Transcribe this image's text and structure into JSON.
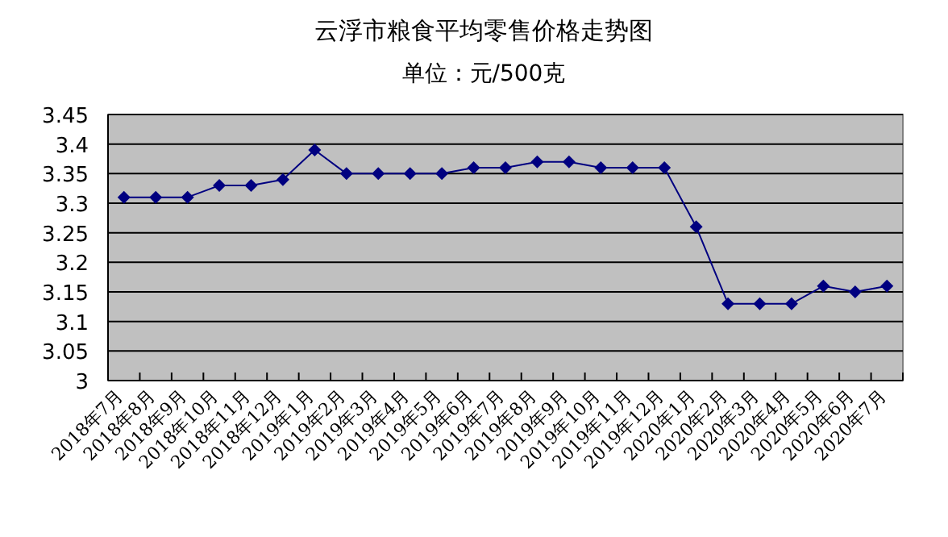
{
  "chart_data": {
    "type": "line",
    "title": "云浮市粮食平均零售价格走势图",
    "subtitle": "单位：元/500克",
    "categories": [
      "2018年7月",
      "2018年8月",
      "2018年9月",
      "2018年10月",
      "2018年11月",
      "2018年12月",
      "2019年1月",
      "2019年2月",
      "2019年3月",
      "2019年4月",
      "2019年5月",
      "2019年6月",
      "2019年7月",
      "2019年8月",
      "2019年9月",
      "2019年10月",
      "2019年11月",
      "2019年12月",
      "2020年1月",
      "2020年2月",
      "2020年3月",
      "2020年4月",
      "2020年5月",
      "2020年6月",
      "2020年7月"
    ],
    "series": [
      {
        "color": "#000080",
        "values": [
          3.31,
          3.31,
          3.31,
          3.33,
          3.33,
          3.34,
          3.39,
          3.35,
          3.35,
          3.35,
          3.35,
          3.36,
          3.36,
          3.37,
          3.37,
          3.36,
          3.36,
          3.36,
          3.26,
          3.13,
          3.13,
          3.13,
          3.16,
          3.15,
          3.16
        ]
      }
    ],
    "ylim": [
      3,
      3.45
    ],
    "yticks": [
      {
        "value": 3,
        "label": "3"
      },
      {
        "value": 3.05,
        "label": "3.05"
      },
      {
        "value": 3.1,
        "label": "3.1"
      },
      {
        "value": 3.15,
        "label": "3.15"
      },
      {
        "value": 3.2,
        "label": "3.2"
      },
      {
        "value": 3.25,
        "label": "3.25"
      },
      {
        "value": 3.3,
        "label": "3.3"
      },
      {
        "value": 3.35,
        "label": "3.35"
      },
      {
        "value": 3.4,
        "label": "3.4"
      },
      {
        "value": 3.45,
        "label": "3.45"
      }
    ],
    "grid": "y",
    "marker": "diamond"
  }
}
